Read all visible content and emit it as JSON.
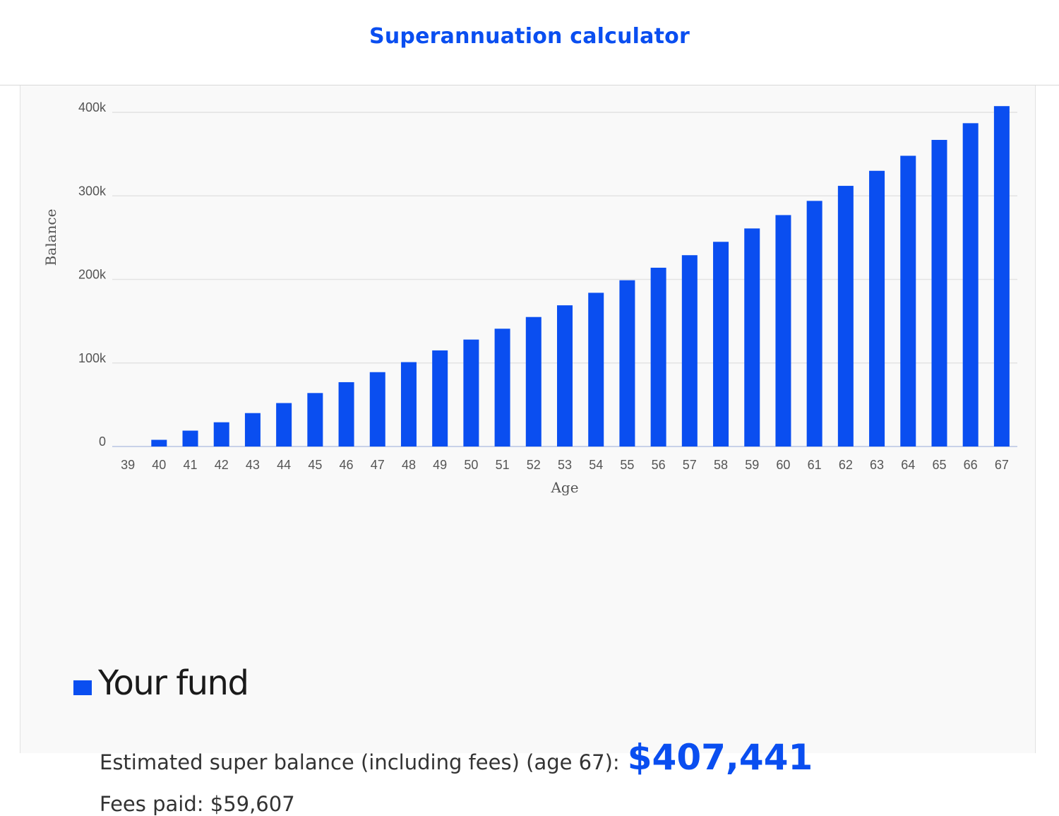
{
  "header": {
    "title": "Superannuation calculator"
  },
  "colors": {
    "accent": "#0a4ef0",
    "grid": "#e3e3e3",
    "axis_text": "#555555"
  },
  "chart_data": {
    "type": "bar",
    "xlabel": "Age",
    "ylabel": "Balance",
    "ylim": [
      0,
      400000
    ],
    "yticks": [
      0,
      100000,
      200000,
      300000,
      400000
    ],
    "ytick_labels": [
      "0",
      "100k",
      "200k",
      "300k",
      "400k"
    ],
    "grid": true,
    "categories": [
      "39",
      "40",
      "41",
      "42",
      "43",
      "44",
      "45",
      "46",
      "47",
      "48",
      "49",
      "50",
      "51",
      "52",
      "53",
      "54",
      "55",
      "56",
      "57",
      "58",
      "59",
      "60",
      "61",
      "62",
      "63",
      "64",
      "65",
      "66",
      "67"
    ],
    "series": [
      {
        "name": "Your fund",
        "color": "#0a4ef0",
        "values": [
          0,
          8000,
          19000,
          29000,
          40000,
          52000,
          64000,
          77000,
          89000,
          101000,
          115000,
          128000,
          141000,
          155000,
          169000,
          184000,
          199000,
          214000,
          229000,
          245000,
          261000,
          277000,
          294000,
          312000,
          330000,
          348000,
          367000,
          387000,
          407441
        ]
      }
    ]
  },
  "legend": {
    "label": "Your fund"
  },
  "summary": {
    "balance_label": "Estimated super balance (including fees) (age 67):",
    "balance_value": "$407,441",
    "fees_label": "Fees paid: $59,607"
  }
}
